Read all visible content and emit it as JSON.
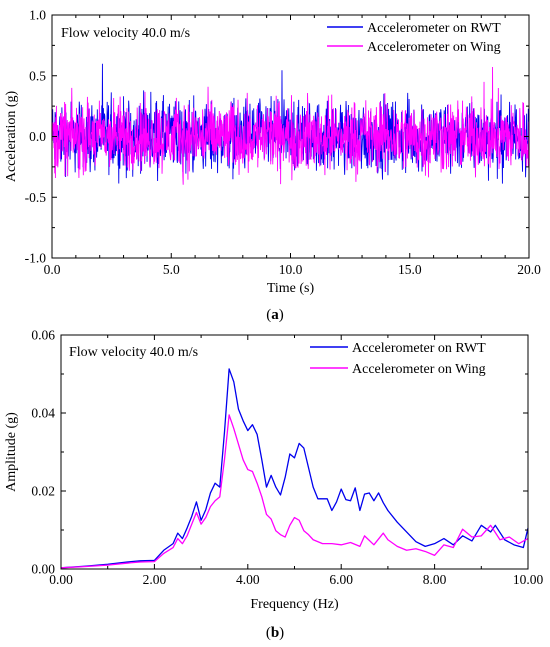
{
  "chart_data": [
    {
      "panel": "(a)",
      "panel_letter": "a",
      "type": "line",
      "title": "",
      "annotation": "Flow velocity 40.0 m/s",
      "xlabel": "Time (s)",
      "ylabel": "Acceleration (g)",
      "xlim": [
        0,
        20
      ],
      "ylim": [
        -1.0,
        1.0
      ],
      "xticks": [
        "0.0",
        "5.0",
        "10.0",
        "15.0",
        "20.0"
      ],
      "yticks": [
        "-1.0",
        "-0.5",
        "0.0",
        "0.5",
        "1.0"
      ],
      "grid": false,
      "legend_position": "top-right",
      "series": [
        {
          "name": "Accelerometer on RWT",
          "color": "#0000ee",
          "amplitude_envelope": 0.7
        },
        {
          "name": "Accelerometer on Wing",
          "color": "#ff00ff",
          "amplitude_envelope": 0.7
        }
      ]
    },
    {
      "panel": "(b)",
      "panel_letter": "b",
      "type": "line",
      "title": "",
      "annotation": "Flow velocity 40.0 m/s",
      "xlabel": "Frequency (Hz)",
      "ylabel": "Amplitude (g)",
      "xlim": [
        0,
        10
      ],
      "ylim": [
        0,
        0.06
      ],
      "xticks": [
        "0.00",
        "2.00",
        "4.00",
        "6.00",
        "8.00",
        "10.00"
      ],
      "yticks": [
        "0.00",
        "0.02",
        "0.04",
        "0.06"
      ],
      "grid": false,
      "legend_position": "top-right",
      "series": [
        {
          "name": "Accelerometer on RWT",
          "color": "#0000ee",
          "x": [
            0,
            0.5,
            1.0,
            1.5,
            1.7,
            2.0,
            2.2,
            2.4,
            2.5,
            2.6,
            2.7,
            2.8,
            2.9,
            3.0,
            3.1,
            3.2,
            3.3,
            3.4,
            3.5,
            3.6,
            3.7,
            3.8,
            3.9,
            4.0,
            4.1,
            4.2,
            4.3,
            4.4,
            4.5,
            4.6,
            4.7,
            4.8,
            4.9,
            5.0,
            5.1,
            5.2,
            5.3,
            5.4,
            5.5,
            5.7,
            5.8,
            5.9,
            6.0,
            6.1,
            6.2,
            6.3,
            6.4,
            6.5,
            6.6,
            6.7,
            6.8,
            6.9,
            7.0,
            7.2,
            7.4,
            7.6,
            7.8,
            8.0,
            8.2,
            8.4,
            8.6,
            8.8,
            9.0,
            9.2,
            9.3,
            9.5,
            9.7,
            9.9,
            10.0
          ],
          "values": [
            0.0003,
            0.0007,
            0.0012,
            0.0019,
            0.0021,
            0.0022,
            0.0048,
            0.0065,
            0.0092,
            0.0078,
            0.0105,
            0.0135,
            0.0172,
            0.0125,
            0.0152,
            0.0195,
            0.022,
            0.021,
            0.035,
            0.0513,
            0.048,
            0.041,
            0.038,
            0.0355,
            0.037,
            0.0345,
            0.028,
            0.021,
            0.024,
            0.021,
            0.019,
            0.0235,
            0.0295,
            0.0285,
            0.0322,
            0.031,
            0.026,
            0.021,
            0.018,
            0.018,
            0.015,
            0.0172,
            0.0205,
            0.0178,
            0.0175,
            0.0208,
            0.015,
            0.0192,
            0.0195,
            0.0175,
            0.0195,
            0.017,
            0.015,
            0.012,
            0.0095,
            0.007,
            0.0058,
            0.0065,
            0.0078,
            0.0062,
            0.0085,
            0.0072,
            0.0112,
            0.0095,
            0.0112,
            0.0075,
            0.0062,
            0.0055,
            0.0105
          ]
        },
        {
          "name": "Accelerometer on Wing",
          "color": "#ff00ff",
          "x": [
            0,
            0.5,
            1.0,
            1.5,
            1.7,
            2.0,
            2.2,
            2.4,
            2.5,
            2.6,
            2.7,
            2.8,
            2.9,
            3.0,
            3.1,
            3.2,
            3.3,
            3.4,
            3.5,
            3.6,
            3.7,
            3.8,
            3.9,
            4.0,
            4.1,
            4.2,
            4.3,
            4.4,
            4.5,
            4.6,
            4.7,
            4.8,
            4.9,
            5.0,
            5.1,
            5.2,
            5.3,
            5.4,
            5.6,
            5.8,
            6.0,
            6.2,
            6.4,
            6.5,
            6.7,
            6.9,
            7.0,
            7.2,
            7.4,
            7.6,
            7.8,
            8.0,
            8.2,
            8.4,
            8.6,
            8.8,
            9.0,
            9.2,
            9.4,
            9.6,
            9.8,
            10.0
          ],
          "values": [
            0.0003,
            0.0006,
            0.001,
            0.0016,
            0.0018,
            0.0019,
            0.004,
            0.0055,
            0.0078,
            0.0065,
            0.0085,
            0.0115,
            0.0145,
            0.0115,
            0.0132,
            0.016,
            0.0175,
            0.0185,
            0.028,
            0.0395,
            0.036,
            0.032,
            0.028,
            0.0255,
            0.025,
            0.022,
            0.0185,
            0.014,
            0.0128,
            0.0098,
            0.0088,
            0.0082,
            0.0112,
            0.0132,
            0.0125,
            0.0098,
            0.0088,
            0.0075,
            0.0065,
            0.0065,
            0.0062,
            0.0068,
            0.0058,
            0.0085,
            0.0062,
            0.0092,
            0.0075,
            0.0058,
            0.0048,
            0.0052,
            0.0045,
            0.0035,
            0.0062,
            0.0055,
            0.0102,
            0.0082,
            0.0085,
            0.0112,
            0.0075,
            0.0082,
            0.0065,
            0.0078
          ]
        }
      ]
    }
  ]
}
